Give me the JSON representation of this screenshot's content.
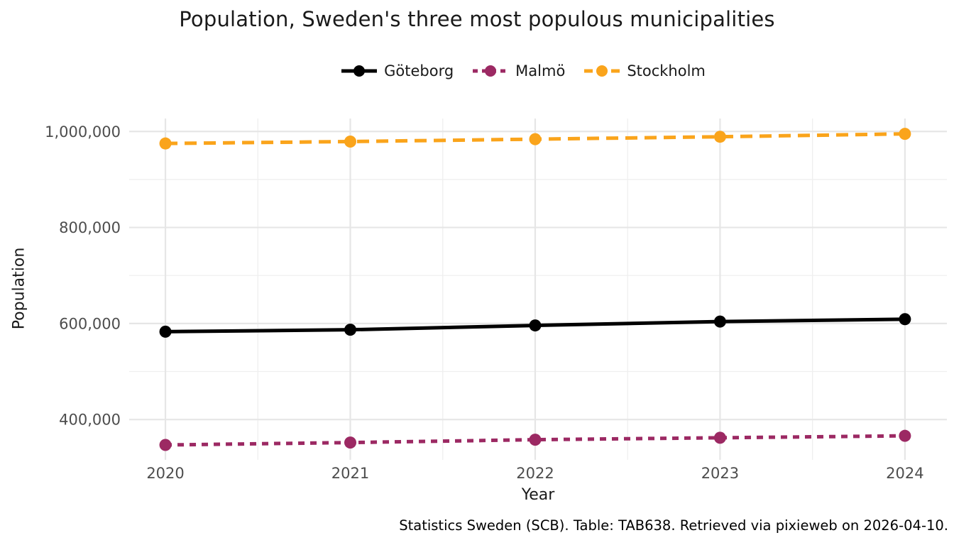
{
  "chart_data": {
    "type": "line",
    "title": "Population, Sweden's three most populous municipalities",
    "xlabel": "Year",
    "ylabel": "Population",
    "caption": "Statistics Sweden (SCB). Table: TAB638. Retrieved via pixieweb on 2026-04-10.",
    "x": [
      2020,
      2021,
      2022,
      2023,
      2024
    ],
    "x_tick_labels": [
      "2020",
      "2021",
      "2022",
      "2023",
      "2024"
    ],
    "x_minor_ticks": [
      2020.5,
      2021.5,
      2022.5,
      2023.5
    ],
    "y_ticks": [
      400000,
      600000,
      800000,
      1000000
    ],
    "y_tick_labels": [
      "400,000",
      "600,000",
      "800,000",
      "1,000,000"
    ],
    "y_minor_ticks": [
      500000,
      700000,
      900000
    ],
    "xlim": [
      2019.804,
      2024.227
    ],
    "ylim": [
      316000,
      1027000
    ],
    "grid": true,
    "legend_position": "top-center",
    "background_color": "#ffffff",
    "gridline_color": "#e6e6e6",
    "tick_label_color": "#4d4d4d",
    "series": [
      {
        "name": "Göteborg",
        "color": "#000000",
        "linestyle": "solid",
        "marker": "circle",
        "values": [
          583000,
          587000,
          596000,
          604000,
          609000
        ]
      },
      {
        "name": "Malmö",
        "color": "#9C2963",
        "linestyle": "dashed-short",
        "marker": "circle",
        "values": [
          347000,
          352000,
          358000,
          362000,
          366000
        ]
      },
      {
        "name": "Stockholm",
        "color": "#FAA41B",
        "linestyle": "dashed-long",
        "marker": "circle",
        "values": [
          975000,
          979000,
          984000,
          989000,
          995000
        ]
      }
    ]
  }
}
